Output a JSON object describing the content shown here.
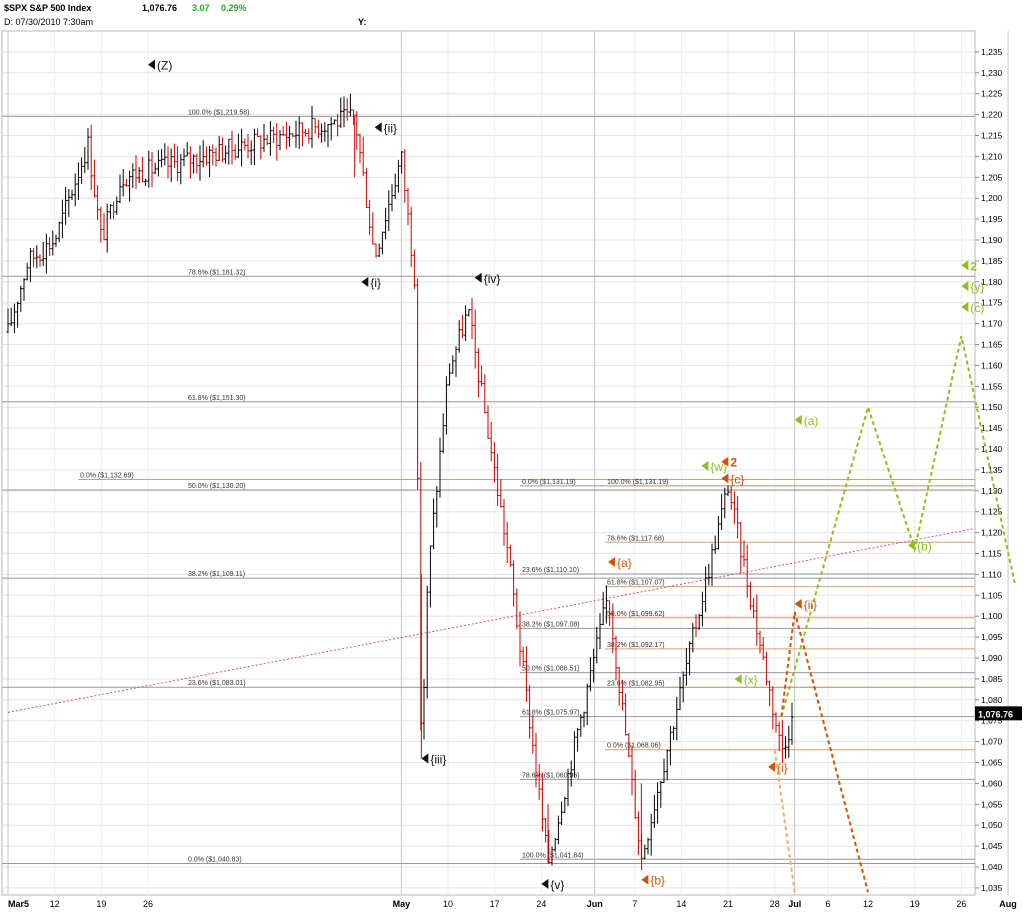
{
  "header": {
    "symbol": "$SPX S&P 500 Index",
    "last": "1,076.76",
    "change": "3.07",
    "pct": "0.29%",
    "date_line": "D: 07/30/2010   7:30am",
    "y_label": "Y:"
  },
  "colors": {
    "up_bar": "#000000",
    "down_bar": "#cc0000",
    "orange": "#d35400",
    "green": "#8fbf1f",
    "trend": "#d65080",
    "fib_gray": "#999999",
    "fib_orange": "#d4a070"
  },
  "chart_data": {
    "type": "line",
    "title": "$SPX S&P 500 Index",
    "ylim": [
      1035,
      1239
    ],
    "y_ticks": [
      1035,
      1040,
      1045,
      1050,
      1055,
      1060,
      1065,
      1070,
      1075,
      1080,
      1085,
      1090,
      1095,
      1100,
      1105,
      1110,
      1115,
      1120,
      1125,
      1130,
      1135,
      1140,
      1145,
      1150,
      1155,
      1160,
      1165,
      1170,
      1175,
      1180,
      1185,
      1190,
      1195,
      1200,
      1205,
      1210,
      1215,
      1220,
      1225,
      1230,
      1235
    ],
    "x_ticks": [
      "Mar5",
      "12",
      "19",
      "26",
      "May",
      "10",
      "17",
      "24",
      "Jun",
      "7",
      "14",
      "21",
      "28",
      "Jul",
      "6",
      "12",
      "19",
      "26",
      "Aug"
    ],
    "last_value": "1,076.76",
    "price_path": [
      {
        "x": "Mar5",
        "y": 1168
      },
      {
        "x": "Mar8",
        "y": 1185
      },
      {
        "x": "Mar12",
        "y": 1190
      },
      {
        "x": "Mar17",
        "y": 1213
      },
      {
        "x": "Mar19",
        "y": 1190
      },
      {
        "x": "Mar22",
        "y": 1205
      },
      {
        "x": "Apr26",
        "y": 1219.58
      },
      {
        "x": "Apr29",
        "y": 1186
      },
      {
        "x": "May3",
        "y": 1210
      },
      {
        "x": "May5",
        "y": 1181
      },
      {
        "x": "May6",
        "y": 1066
      },
      {
        "x": "May7",
        "y": 1110
      },
      {
        "x": "May10",
        "y": 1158
      },
      {
        "x": "May13",
        "y": 1173
      },
      {
        "x": "May19",
        "y": 1115
      },
      {
        "x": "May25",
        "y": 1040.83
      },
      {
        "x": "Jun3",
        "y": 1105
      },
      {
        "x": "Jun8",
        "y": 1041.84
      },
      {
        "x": "Jun21",
        "y": 1131.19
      },
      {
        "x": "Jun29",
        "y": 1068.06
      },
      {
        "x": "Jul1",
        "y": 1076.76
      }
    ],
    "wave_labels": [
      {
        "text": "(Z)",
        "x": "Mar26",
        "y": 1231,
        "color": "black"
      },
      {
        "text": "{ii}",
        "x": "Apr29",
        "y": 1216,
        "color": "black"
      },
      {
        "text": "{i}",
        "x": "Apr27",
        "y": 1179,
        "color": "black"
      },
      {
        "text": "{iv}",
        "x": "May14",
        "y": 1180,
        "color": "black"
      },
      {
        "text": "{iii}",
        "x": "May6",
        "y": 1065,
        "color": "black"
      },
      {
        "text": "{v}",
        "x": "May24",
        "y": 1035,
        "color": "black"
      },
      {
        "text": "{a}",
        "x": "Jun3",
        "y": 1112,
        "color": "orange"
      },
      {
        "text": "{b}",
        "x": "Jun8",
        "y": 1036,
        "color": "orange"
      },
      {
        "text": "{w}",
        "x": "Jun17",
        "y": 1135,
        "color": "green"
      },
      {
        "text": "2",
        "x": "Jun20",
        "y": 1136,
        "color": "orange"
      },
      {
        "text": "{c}",
        "x": "Jun20",
        "y": 1132,
        "color": "orange"
      },
      {
        "text": "{x}",
        "x": "Jun22",
        "y": 1084,
        "color": "green"
      },
      {
        "text": "{i}",
        "x": "Jun27",
        "y": 1063,
        "color": "orange"
      },
      {
        "text": "{ii}",
        "x": "Jul1",
        "y": 1102,
        "color": "orange"
      },
      {
        "text": "(a)",
        "x": "Jul1",
        "y": 1146,
        "color": "green"
      },
      {
        "text": "(b)",
        "x": "Jul18",
        "y": 1116,
        "color": "green"
      },
      {
        "text": "2",
        "x": "Jul26",
        "y": 1183,
        "color": "green"
      },
      {
        "text": "{y}",
        "x": "Jul26",
        "y": 1178,
        "color": "green"
      },
      {
        "text": "(c)",
        "x": "Jul26",
        "y": 1173,
        "color": "green"
      }
    ],
    "fib_sets": [
      {
        "name": "A",
        "color": "gray",
        "levels": [
          {
            "label": "100.0%  ($1,219.58)",
            "value": 1219.58
          },
          {
            "label": "78.6%  ($1,181.32)",
            "value": 1181.32
          },
          {
            "label": "61.8%  ($1,151.30)",
            "value": 1151.3
          },
          {
            "label": "50.0%  ($1,130.20)",
            "value": 1130.2
          },
          {
            "label": "38.2%  ($1,109.11)",
            "value": 1109.11
          },
          {
            "label": "23.6%  ($1,083.01)",
            "value": 1083.01
          },
          {
            "label": "0.0%  ($1,040.83)",
            "value": 1040.83
          }
        ]
      },
      {
        "name": "B",
        "color": "orange",
        "levels": [
          {
            "label": "0.0%  ($1,132.69)",
            "value": 1132.69
          }
        ]
      },
      {
        "name": "C",
        "color": "gray",
        "levels": [
          {
            "label": "0.0%  ($1,131.19)",
            "value": 1131.19
          },
          {
            "label": "23.6%  ($1,110.10)",
            "value": 1110.1
          },
          {
            "label": "38.2%  ($1,097.08)",
            "value": 1097.08
          },
          {
            "label": "50.0%  ($1,086.51)",
            "value": 1086.51
          },
          {
            "label": "61.8%  ($1,075.97)",
            "value": 1075.97
          },
          {
            "label": "78.6%  ($1,060.96)",
            "value": 1060.96
          },
          {
            "label": "100.0%  ($1,041.84)",
            "value": 1041.84
          }
        ]
      },
      {
        "name": "D",
        "color": "orange",
        "levels": [
          {
            "label": "100.0%  ($1,131.19)",
            "value": 1131.19
          },
          {
            "label": "78.6%  ($1,117.68)",
            "value": 1117.68
          },
          {
            "label": "61.8%  ($1,107.07)",
            "value": 1107.07
          },
          {
            "label": "50.0%  ($1,099.62)",
            "value": 1099.62
          },
          {
            "label": "38.2%  ($1,092.17)",
            "value": 1092.17
          },
          {
            "label": "23.6%  ($1,082.95)",
            "value": 1082.95
          },
          {
            "label": "0.0%  ($1,068.06)",
            "value": 1068.06
          }
        ]
      }
    ],
    "projections": {
      "green": [
        {
          "x": "Jun29",
          "y": 1076
        },
        {
          "x": "Jul12",
          "y": 1150
        },
        {
          "x": "Jul19",
          "y": 1116
        },
        {
          "x": "Jul26",
          "y": 1167
        },
        {
          "x": "Aug3",
          "y": 1108
        }
      ],
      "orange": [
        {
          "x": "Jun29",
          "y": 1076
        },
        {
          "x": "Jul1",
          "y": 1101
        },
        {
          "x": "Jul12",
          "y": 1034
        }
      ],
      "orange_light": [
        {
          "x": "Jun28",
          "y": 1068
        },
        {
          "x": "Jul1",
          "y": 1034
        }
      ],
      "trendline": [
        {
          "x": "Mar5",
          "y": 1077
        },
        {
          "x": "Aug3",
          "y": 1121
        }
      ]
    }
  }
}
